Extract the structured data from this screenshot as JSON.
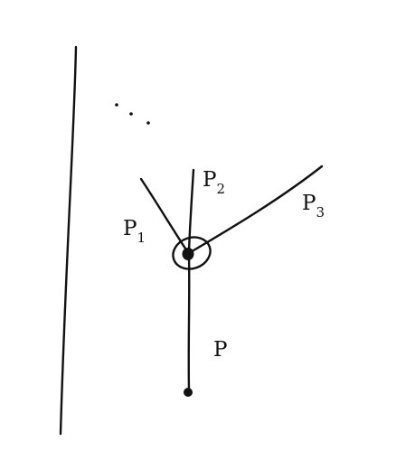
{
  "diagram": {
    "labels": {
      "p1": {
        "base": "P",
        "sub": "1"
      },
      "p2": {
        "base": "P",
        "sub": "2"
      },
      "p3": {
        "base": "P",
        "sub": "3"
      },
      "p": {
        "base": "P"
      }
    },
    "ellipsis": "· · ·",
    "colors": {
      "ink": "#111111",
      "background": "#ffffff"
    }
  }
}
